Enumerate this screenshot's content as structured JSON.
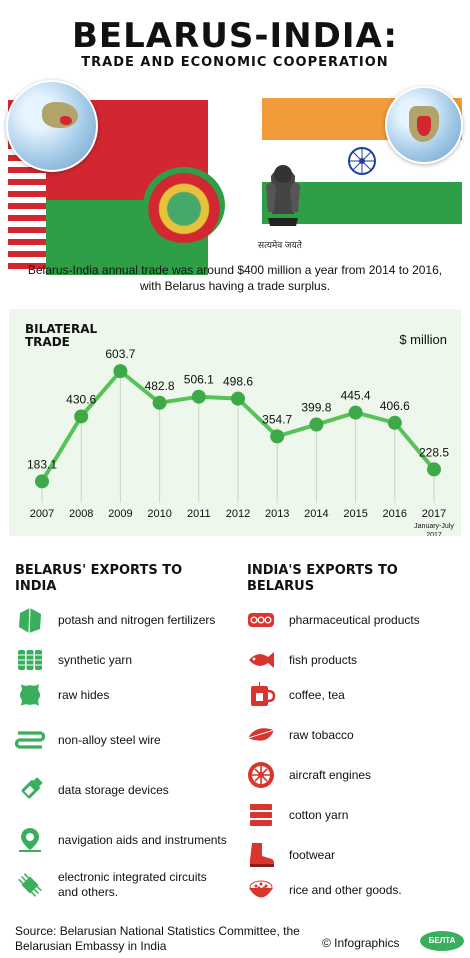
{
  "header": {
    "title": "BELARUS-INDIA:",
    "subtitle": "TRADE AND ECONOMIC COOPERATION"
  },
  "flags": {
    "india_motto": "सत्यमेव जयते",
    "colors": {
      "belarus_red": "#d22630",
      "belarus_green": "#2e9e47",
      "india_saffron": "#f39a3a",
      "india_green": "#2e9e47",
      "india_chakra": "#1f3f99"
    }
  },
  "intro": "Belarus-India annual trade was around $400 million a year from 2014 to 2016, with Belarus having a trade surplus.",
  "chart_data": {
    "type": "line",
    "title": "BILATERAL TRADE",
    "unit": "$ million",
    "categories": [
      "2007",
      "2008",
      "2009",
      "2010",
      "2011",
      "2012",
      "2013",
      "2014",
      "2015",
      "2016",
      "2017"
    ],
    "category_notes": [
      "",
      "",
      "",
      "",
      "",
      "",
      "",
      "",
      "",
      "",
      "January-July 2017"
    ],
    "values": [
      183.1,
      430.6,
      603.7,
      482.8,
      506.1,
      498.6,
      354.7,
      399.8,
      445.4,
      406.6,
      228.5
    ],
    "value_labels": [
      "183.1",
      "430.6",
      "603.7",
      "482.8",
      "506.1",
      "498.6",
      "354.7",
      "399.8",
      "445.4",
      "406.6",
      "228.5"
    ],
    "ylim": [
      150,
      650
    ],
    "line_color": "#57c258",
    "point_color": "#3daa47",
    "background": "#edf7ec"
  },
  "belarus_exports": {
    "title": "BELARUS' EXPORTS TO INDIA",
    "color": "#3aae5c",
    "items": [
      {
        "icon": "fertilizer-icon",
        "label": "potash and nitrogen fertilizers"
      },
      {
        "icon": "yarn-spools-icon",
        "label": "synthetic yarn"
      },
      {
        "icon": "hide-icon",
        "label": "raw hides"
      },
      {
        "icon": "wire-coil-icon",
        "label": "non-alloy steel wire"
      },
      {
        "icon": "usb-stick-icon",
        "label": "data storage devices"
      },
      {
        "icon": "map-pin-icon",
        "label": "navigation aids and instruments"
      },
      {
        "icon": "microchip-icon",
        "label": "electronic integrated circuits and others."
      }
    ]
  },
  "india_exports": {
    "title": "INDIA'S EXPORTS TO BELARUS",
    "color": "#d9352e",
    "items": [
      {
        "icon": "pills-icon",
        "label": "pharmaceutical products"
      },
      {
        "icon": "fish-icon",
        "label": "fish products"
      },
      {
        "icon": "tea-cup-icon",
        "label": "coffee, tea"
      },
      {
        "icon": "tobacco-leaf-icon",
        "label": "raw tobacco"
      },
      {
        "icon": "jet-engine-icon",
        "label": "aircraft engines"
      },
      {
        "icon": "cotton-fabric-icon",
        "label": "cotton yarn"
      },
      {
        "icon": "boot-icon",
        "label": "footwear"
      },
      {
        "icon": "rice-bowl-icon",
        "label": "rice and other goods."
      }
    ]
  },
  "footer": {
    "source": "Source: Belarusian National Statistics Committee, the Belarusian Embassy in India",
    "copyright": "© Infographics",
    "logo_text": "БЕЛТА"
  }
}
